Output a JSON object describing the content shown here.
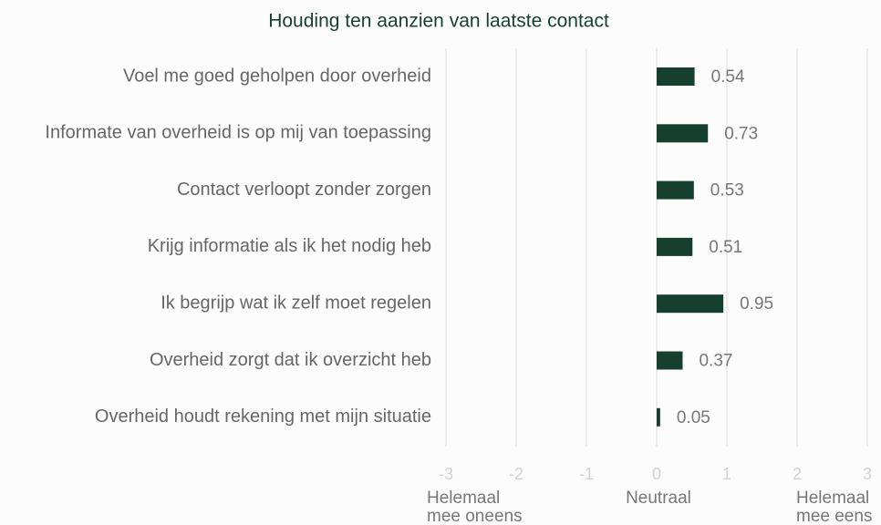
{
  "chart_data": {
    "type": "barh",
    "title": "Houding ten aanzien van laatste contact",
    "categories": [
      "Voel me goed geholpen door overheid",
      "Informate van overheid is op mij van toepassing",
      "Contact verloopt zonder zorgen",
      "Krijg informatie als ik het nodig heb",
      "Ik begrijp wat ik zelf moet regelen",
      "Overheid zorgt dat ik overzicht heb",
      "Overheid houdt rekening met mijn situatie"
    ],
    "values": [
      0.54,
      0.73,
      0.53,
      0.51,
      0.95,
      0.37,
      0.05
    ],
    "color": "#173f2f",
    "xlim": [
      -3,
      3
    ],
    "xticks": [
      -3,
      -2,
      -1,
      0,
      1,
      2,
      3
    ],
    "grid": true,
    "axis_annotations": [
      [
        "Helemaal",
        "mee oneens"
      ],
      [
        "Neutraal"
      ],
      [
        "Helemaal",
        "mee eens"
      ]
    ]
  }
}
